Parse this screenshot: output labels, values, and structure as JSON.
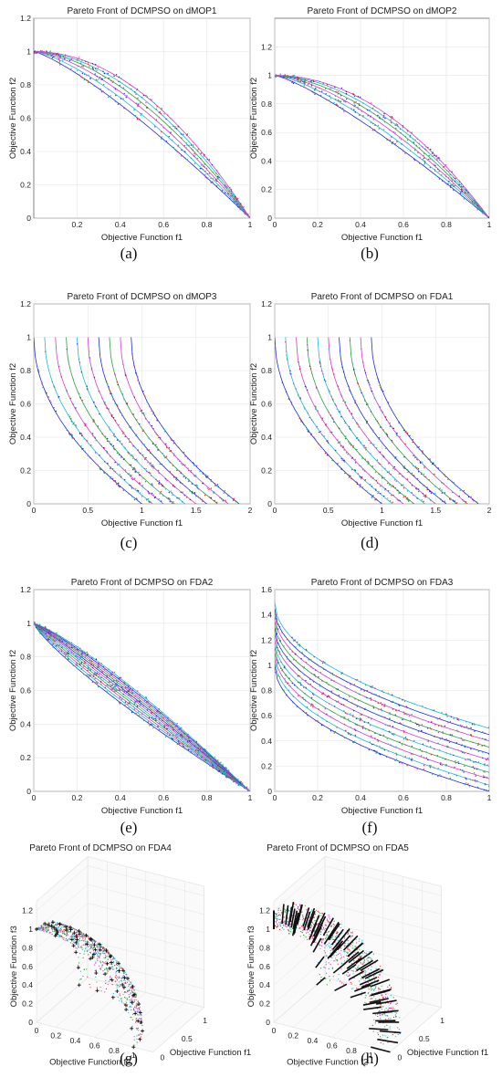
{
  "figure": {
    "captions": [
      "(a)",
      "(b)",
      "(c)",
      "(d)",
      "(e)",
      "(f)",
      "(g)",
      "(h)"
    ]
  },
  "colors": {
    "blue": "#1f2fd0",
    "cyan": "#20b8d8",
    "magenta": "#d040c8",
    "green": "#30a040",
    "red": "#d83030",
    "black": "#111111",
    "axis": "#666666",
    "grid": "#e3e3e3"
  },
  "chart_data": [
    {
      "id": "a",
      "type": "line",
      "title": "Pareto Front of DCMPSO on dMOP1",
      "xlabel": "Objective Function f1",
      "ylabel": "Objective Function f2",
      "xlim": [
        0,
        1
      ],
      "ylim": [
        0,
        1.2
      ],
      "xticks": [
        "0.2",
        "0.4",
        "0.6",
        "0.8",
        "1"
      ],
      "yticks": [
        "0",
        "0.2",
        "0.4",
        "0.6",
        "0.8",
        "1",
        "1.2"
      ],
      "family": "f2 = 1 - f1^H",
      "exponents": [
        1.25,
        1.4,
        1.55,
        1.7,
        1.85,
        2.0
      ],
      "grid": true
    },
    {
      "id": "b",
      "type": "line",
      "title": "Pareto Front of DCMPSO on dMOP2",
      "xlabel": "Objective Function f1",
      "ylabel": "Objective Function f2",
      "xlim": [
        0,
        1
      ],
      "ylim": [
        0,
        1.4
      ],
      "xticks": [
        "0",
        "0.2",
        "0.4",
        "0.6",
        "0.8",
        "1"
      ],
      "yticks": [
        "0",
        "0.2",
        "0.4",
        "0.6",
        "0.8",
        "1",
        "1.2"
      ],
      "family": "f2 = 1 - f1^H",
      "exponents": [
        1.25,
        1.4,
        1.55,
        1.7,
        1.85,
        2.0
      ],
      "grid": true
    },
    {
      "id": "c",
      "type": "line",
      "title": "Pareto Front of DCMPSO on dMOP3",
      "xlabel": "Objective Function f1",
      "ylabel": "Objective Function f2",
      "xlim": [
        0,
        2
      ],
      "ylim": [
        0,
        1.2
      ],
      "xticks": [
        "0",
        "0.5",
        "1",
        "1.5",
        "2"
      ],
      "yticks": [
        "0",
        "0.2",
        "0.4",
        "0.6",
        "0.8",
        "1",
        "1.2"
      ],
      "family": "f2 = 1 - sqrt(f1 - shift)",
      "shifts": [
        0,
        0.1,
        0.2,
        0.3,
        0.4,
        0.5,
        0.6,
        0.7,
        0.8,
        0.9
      ],
      "grid": true
    },
    {
      "id": "d",
      "type": "line",
      "title": "Pareto Front of DCMPSO on FDA1",
      "xlabel": "Objective Function f1",
      "ylabel": "Objective Function f2",
      "xlim": [
        0,
        2
      ],
      "ylim": [
        0,
        1.2
      ],
      "xticks": [
        "0",
        "0.5",
        "1",
        "1.5",
        "2"
      ],
      "yticks": [
        "0",
        "0.2",
        "0.4",
        "0.6",
        "0.8",
        "1",
        "1.2"
      ],
      "family": "f2 = 1 - sqrt(f1 - shift)",
      "shifts": [
        0,
        0.1,
        0.2,
        0.3,
        0.4,
        0.5,
        0.6,
        0.7,
        0.8,
        0.9
      ],
      "grid": true
    },
    {
      "id": "e",
      "type": "line",
      "title": "Pareto Front of DCMPSO on FDA2",
      "xlabel": "Objective Function f1",
      "ylabel": "Objective Function f2",
      "xlim": [
        0,
        1
      ],
      "ylim": [
        0,
        1.2
      ],
      "xticks": [
        "0",
        "0.2",
        "0.4",
        "0.6",
        "0.8",
        "1"
      ],
      "yticks": [
        "0",
        "0.2",
        "0.4",
        "0.6",
        "0.8",
        "1",
        "1.2"
      ],
      "family": "f2 = 1 - f1^H",
      "exponents": [
        0.82,
        0.86,
        0.9,
        0.94,
        0.98,
        1.02,
        1.06,
        1.1,
        1.14,
        1.18,
        1.22
      ],
      "grid": true
    },
    {
      "id": "f",
      "type": "line",
      "title": "Pareto Front of DCMPSO on FDA3",
      "xlabel": "Objective Function f1",
      "ylabel": "Objective Function f2",
      "xlim": [
        0,
        1
      ],
      "ylim": [
        0,
        1.6
      ],
      "xticks": [
        "0",
        "0.2",
        "0.4",
        "0.6",
        "0.8",
        "1"
      ],
      "yticks": [
        "0",
        "0.2",
        "0.4",
        "0.6",
        "0.8",
        "1",
        "1.2",
        "1.4",
        "1.6"
      ],
      "family": "f2 = offset + 1 - sqrt(f1)",
      "offsets": [
        0,
        0.05,
        0.1,
        0.15,
        0.2,
        0.25,
        0.3,
        0.35,
        0.4,
        0.45,
        0.5
      ],
      "grid": true
    },
    {
      "id": "g",
      "type": "scatter",
      "title": "Pareto Front of DCMPSO on FDA4",
      "xlabel": "Objective Function f2",
      "ylabel": "Objective Function f1",
      "zlabel": "Objective Function f3",
      "f2ticks": [
        "0",
        "0.2",
        "0.4",
        "0.6",
        "0.8",
        "1"
      ],
      "f1ticks": [
        "0",
        "0.5",
        "1"
      ],
      "f3ticks": [
        "0",
        "0.2",
        "0.4",
        "0.6",
        "0.8",
        "1",
        "1.2"
      ],
      "surface": "sphere octant, radius 1",
      "grid": true
    },
    {
      "id": "h",
      "type": "scatter",
      "title": "Pareto Front of DCMPSO on FDA5",
      "xlabel": "Objective Function f2",
      "ylabel": "Objective Function f1",
      "zlabel": "Objective Function f3",
      "f2ticks": [
        "0",
        "0.2",
        "0.4",
        "0.6",
        "0.8",
        "1"
      ],
      "f1ticks": [
        "0",
        "0.5",
        "1"
      ],
      "f3ticks": [
        "0",
        "0.2",
        "0.4",
        "0.6",
        "0.8",
        "1",
        "1.2"
      ],
      "surface": "sphere octant, radius 1 to 1.2",
      "grid": true
    }
  ]
}
